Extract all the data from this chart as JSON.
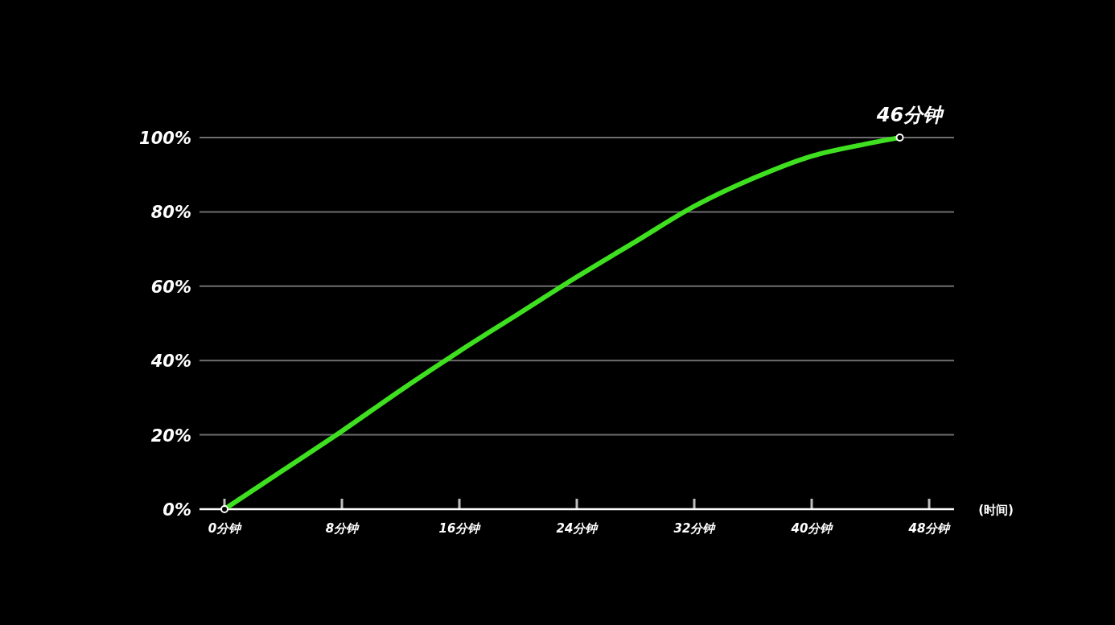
{
  "chart_data": {
    "type": "line",
    "xlabel": "(时间)",
    "xlim": [
      -1.7,
      49.7
    ],
    "ylim": [
      0,
      100
    ],
    "xticks": [
      {
        "value": 0,
        "label": "0分钟"
      },
      {
        "value": 8,
        "label": "8分钟"
      },
      {
        "value": 16,
        "label": "16分钟"
      },
      {
        "value": 24,
        "label": "24分钟"
      },
      {
        "value": 32,
        "label": "32分钟"
      },
      {
        "value": 40,
        "label": "40分钟"
      },
      {
        "value": 48,
        "label": "48分钟"
      }
    ],
    "yticks": [
      {
        "value": 0,
        "label": "0%"
      },
      {
        "value": 20,
        "label": "20%"
      },
      {
        "value": 40,
        "label": "40%"
      },
      {
        "value": 60,
        "label": "60%"
      },
      {
        "value": 80,
        "label": "80%"
      },
      {
        "value": 100,
        "label": "100%"
      }
    ],
    "grid": "y",
    "series": [
      {
        "color": "#3ee01f",
        "x": [
          0,
          4,
          8,
          12,
          16,
          20,
          24,
          28,
          32,
          36,
          40,
          44,
          46
        ],
        "values": [
          0,
          10.5,
          21,
          32,
          42.5,
          52.5,
          62.5,
          72,
          81.5,
          89,
          95,
          98.5,
          100
        ]
      },
      {
        "type": "scatter",
        "color": "#ffffff",
        "marker": "circle",
        "x": [
          0,
          46
        ],
        "values": [
          0,
          100
        ]
      }
    ],
    "annotations": [
      {
        "text": "46分钟",
        "x": 46,
        "y": 100
      }
    ]
  }
}
